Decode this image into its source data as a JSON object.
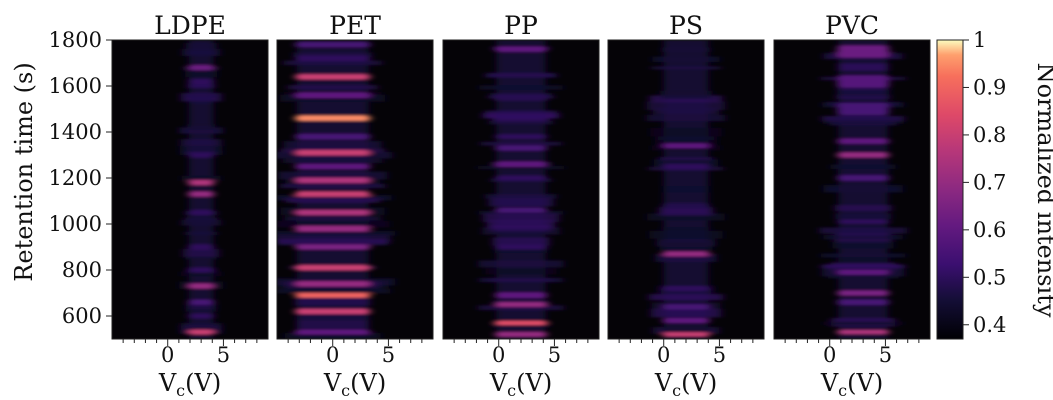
{
  "chart_data": {
    "type": "heatmap",
    "ylabel": "Retention time (s)",
    "xlabel": "V",
    "xlabel_sub": "c",
    "xlabel_unit": "(V)",
    "x_ticks": [
      "0",
      "5"
    ],
    "y_ticks": [
      "600",
      "800",
      "1000",
      "1200",
      "1400",
      "1600",
      "1800"
    ],
    "xlim": [
      -5,
      9
    ],
    "ylim": [
      500,
      1800
    ],
    "panels": [
      {
        "title": "LDPE",
        "center_v": 3,
        "base_width_v": 1.1,
        "bands": [
          {
            "t": 1680,
            "w": 10,
            "i": 0.62
          },
          {
            "t": 1620,
            "w": 10,
            "i": 0.5
          },
          {
            "t": 1560,
            "w": 10,
            "i": 0.48
          },
          {
            "t": 1420,
            "w": 10,
            "i": 0.45
          },
          {
            "t": 1300,
            "w": 12,
            "i": 0.5
          },
          {
            "t": 1180,
            "w": 10,
            "i": 0.75
          },
          {
            "t": 1130,
            "w": 10,
            "i": 0.7
          },
          {
            "t": 1050,
            "w": 12,
            "i": 0.5
          },
          {
            "t": 900,
            "w": 12,
            "i": 0.5
          },
          {
            "t": 800,
            "w": 10,
            "i": 0.5
          },
          {
            "t": 730,
            "w": 10,
            "i": 0.7
          },
          {
            "t": 660,
            "w": 10,
            "i": 0.55
          },
          {
            "t": 600,
            "w": 10,
            "i": 0.5
          },
          {
            "t": 530,
            "w": 8,
            "i": 0.8
          }
        ]
      },
      {
        "title": "PET",
        "center_v": 0,
        "base_width_v": 3.2,
        "bands": [
          {
            "t": 1780,
            "w": 10,
            "i": 0.55
          },
          {
            "t": 1720,
            "w": 12,
            "i": 0.5
          },
          {
            "t": 1640,
            "w": 10,
            "i": 0.8
          },
          {
            "t": 1560,
            "w": 12,
            "i": 0.6
          },
          {
            "t": 1460,
            "w": 10,
            "i": 0.95
          },
          {
            "t": 1380,
            "w": 12,
            "i": 0.55
          },
          {
            "t": 1310,
            "w": 10,
            "i": 0.8
          },
          {
            "t": 1250,
            "w": 10,
            "i": 0.6
          },
          {
            "t": 1190,
            "w": 10,
            "i": 0.75
          },
          {
            "t": 1130,
            "w": 10,
            "i": 0.8
          },
          {
            "t": 1050,
            "w": 10,
            "i": 0.75
          },
          {
            "t": 980,
            "w": 12,
            "i": 0.7
          },
          {
            "t": 900,
            "w": 10,
            "i": 0.65
          },
          {
            "t": 810,
            "w": 10,
            "i": 0.8
          },
          {
            "t": 740,
            "w": 10,
            "i": 0.7
          },
          {
            "t": 690,
            "w": 8,
            "i": 0.9
          },
          {
            "t": 620,
            "w": 10,
            "i": 0.8
          },
          {
            "t": 530,
            "w": 8,
            "i": 0.6
          }
        ]
      },
      {
        "title": "PP",
        "center_v": 2,
        "base_width_v": 2.2,
        "bands": [
          {
            "t": 1760,
            "w": 10,
            "i": 0.6
          },
          {
            "t": 1380,
            "w": 8,
            "i": 0.5
          },
          {
            "t": 1330,
            "w": 10,
            "i": 0.55
          },
          {
            "t": 1260,
            "w": 10,
            "i": 0.6
          },
          {
            "t": 1200,
            "w": 10,
            "i": 0.5
          },
          {
            "t": 1060,
            "w": 8,
            "i": 0.55
          },
          {
            "t": 900,
            "w": 10,
            "i": 0.5
          },
          {
            "t": 690,
            "w": 12,
            "i": 0.6
          },
          {
            "t": 650,
            "w": 8,
            "i": 0.7
          },
          {
            "t": 570,
            "w": 6,
            "i": 0.85
          },
          {
            "t": 520,
            "w": 8,
            "i": 0.7
          }
        ]
      },
      {
        "title": "PS",
        "center_v": 2,
        "base_width_v": 2.0,
        "bands": [
          {
            "t": 1760,
            "w": 10,
            "i": 0.45
          },
          {
            "t": 1340,
            "w": 8,
            "i": 0.6
          },
          {
            "t": 1250,
            "w": 10,
            "i": 0.5
          },
          {
            "t": 1080,
            "w": 10,
            "i": 0.48
          },
          {
            "t": 870,
            "w": 8,
            "i": 0.7
          },
          {
            "t": 720,
            "w": 10,
            "i": 0.5
          },
          {
            "t": 640,
            "w": 10,
            "i": 0.55
          },
          {
            "t": 580,
            "w": 8,
            "i": 0.6
          },
          {
            "t": 520,
            "w": 6,
            "i": 0.8
          }
        ]
      },
      {
        "title": "PVC",
        "center_v": 3,
        "base_width_v": 2.2,
        "bands": [
          {
            "t": 1750,
            "w": 40,
            "i": 0.62
          },
          {
            "t": 1620,
            "w": 40,
            "i": 0.58
          },
          {
            "t": 1500,
            "w": 40,
            "i": 0.55
          },
          {
            "t": 1360,
            "w": 10,
            "i": 0.6
          },
          {
            "t": 1300,
            "w": 10,
            "i": 0.7
          },
          {
            "t": 1200,
            "w": 12,
            "i": 0.55
          },
          {
            "t": 1010,
            "w": 6,
            "i": 0.5
          },
          {
            "t": 790,
            "w": 8,
            "i": 0.6
          },
          {
            "t": 700,
            "w": 10,
            "i": 0.65
          },
          {
            "t": 660,
            "w": 12,
            "i": 0.55
          },
          {
            "t": 530,
            "w": 6,
            "i": 0.75
          }
        ]
      }
    ],
    "colorbar": {
      "label": "Normalized intensity",
      "min": 0.37,
      "max": 1.0,
      "ticks": [
        "0.4",
        "0.5",
        "0.6",
        "0.7",
        "0.8",
        "0.9",
        "1"
      ],
      "colormap": "magma"
    }
  }
}
